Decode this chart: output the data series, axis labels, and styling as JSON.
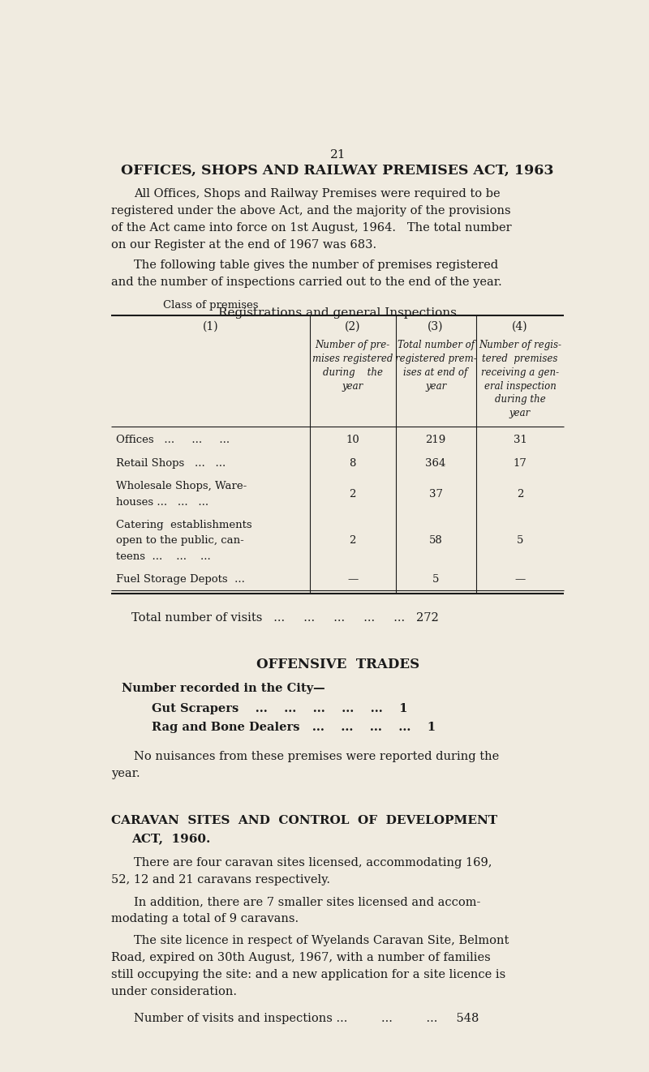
{
  "bg_color": "#f0ebe0",
  "text_color": "#1a1a1a",
  "page_number": "21",
  "title1": "OFFICES, SHOPS AND RAILWAY PREMISES ACT, 1963",
  "para1_lines": [
    "All Offices, Shops and Railway Premises were required to be",
    "registered under the above Act, and the majority of the provisions",
    "of the Act came into force on 1st August, 1964.   The total number",
    "on our Register at the end of 1967 was 683."
  ],
  "para2_lines": [
    "The following table gives the number of premises registered",
    "and the number of inspections carried out to the end of the year."
  ],
  "table_title": "Registrations and general Inspections",
  "col_num_labels": [
    "(1)",
    "(2)",
    "(3)",
    "(4)"
  ],
  "col1_label": "Class of premises",
  "col2_lines": [
    "Number of pre-",
    "mises registered",
    "during    the",
    "year"
  ],
  "col3_lines": [
    "Total number of",
    "registered prem-",
    "ises at end of",
    "year"
  ],
  "col4_lines": [
    "Number of regis-",
    "tered  premises",
    "receiving a gen-",
    "eral inspection",
    "during the",
    "year"
  ],
  "row1": [
    "Offices   ...     ...     ...",
    "10",
    "219",
    "31"
  ],
  "row2": [
    "Retail Shops   ...   ...",
    "8",
    "364",
    "17"
  ],
  "row3a": "Wholesale Shops, Ware-",
  "row3b": "houses ...   ...   ...",
  "row3vals": [
    "2",
    "37",
    "2"
  ],
  "row4a": "Catering  establishments",
  "row4b": "open to the public, can-",
  "row4c": "teens  ...    ...    ...",
  "row4vals": [
    "2",
    "58",
    "5"
  ],
  "row5": [
    "Fuel Storage Depots  ...",
    "—",
    "5",
    "—"
  ],
  "total_label": "Total number of visits   ...     ...     ...     ...     ...   272",
  "offensive_title": "OFFENSIVE  TRADES",
  "offensive_intro": "Number recorded in the City—",
  "gut_scrapers": "Gut Scrapers    ...    ...    ...    ...    ...    1",
  "rag_bone": "Rag and Bone Dealers   ...    ...    ...    ...    1",
  "para3_lines": [
    "No nuisances from these premises were reported during the",
    "year."
  ],
  "caravan_title1": "CARAVAN  SITES  AND  CONTROL  OF  DEVELOPMENT",
  "caravan_title2": "ACT,  1960.",
  "para4_lines": [
    "There are four caravan sites licensed, accommodating 169,",
    "52, 12 and 21 caravans respectively."
  ],
  "para5_lines": [
    "In addition, there are 7 smaller sites licensed and accom-",
    "modating a total of 9 caravans."
  ],
  "para6_lines": [
    "The site licence in respect of Wyelands Caravan Site, Belmont",
    "Road, expired on 30th August, 1967, with a number of families",
    "still occupying the site: and a new application for a site licence is",
    "under consideration."
  ],
  "para7": "Number of visits and inspections ...         ...         ...     548",
  "ml": 0.06,
  "mr": 0.96,
  "ind": 0.105,
  "c1": 0.455,
  "c2": 0.625,
  "c3": 0.785
}
